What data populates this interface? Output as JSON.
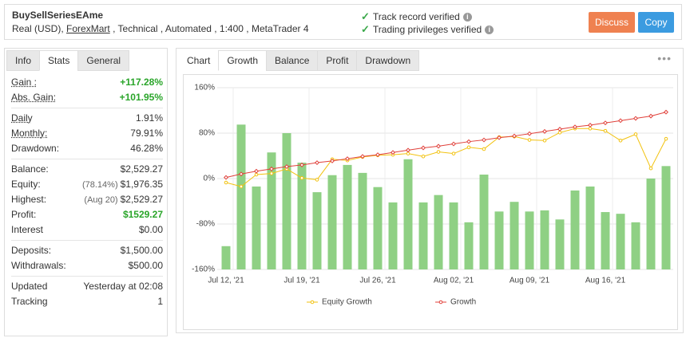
{
  "header": {
    "title": "BuySellSeriesEAme",
    "subtitle_prefix": "Real (USD),",
    "broker": "ForexMart",
    "subtitle_suffix": ", Technical , Automated , 1:400 , MetaTrader 4",
    "verifications": [
      "Track record verified",
      "Trading privileges verified"
    ],
    "buttons": [
      "Discuss",
      "Copy"
    ]
  },
  "stats_panel": {
    "tabs": [
      "Info",
      "Stats",
      "General"
    ],
    "active_tab": 1,
    "groups": [
      [
        {
          "label": "Gain :",
          "value": "+117.28%",
          "dotted": true,
          "green": true
        },
        {
          "label": "Abs. Gain:",
          "value": "+101.95%",
          "dotted": true,
          "green": true
        }
      ],
      [
        {
          "label": "Daily",
          "value": "1.91%",
          "dotted": true
        },
        {
          "label": "Monthly:",
          "value": "79.91%",
          "dotted": true
        },
        {
          "label": "Drawdown:",
          "value": "46.28%"
        }
      ],
      [
        {
          "label": "Balance:",
          "value": "$2,529.27"
        },
        {
          "label": "Equity:",
          "note": "(78.14%)",
          "value": "$1,976.35"
        },
        {
          "label": "Highest:",
          "note": "(Aug 20)",
          "value": "$2,529.27"
        },
        {
          "label": "Profit:",
          "value": "$1529.27",
          "green": true
        },
        {
          "label": "Interest",
          "value": "$0.00"
        }
      ],
      [
        {
          "label": "Deposits:",
          "value": "$1,500.00"
        },
        {
          "label": "Withdrawals:",
          "value": "$500.00"
        }
      ],
      [
        {
          "label": "Updated",
          "value": "Yesterday at 02:08"
        },
        {
          "label": "Tracking",
          "value": "1"
        }
      ]
    ]
  },
  "chart_panel": {
    "label": "Chart",
    "tabs": [
      "Growth",
      "Balance",
      "Profit",
      "Drawdown"
    ],
    "active_tab": 0
  },
  "chart_data": {
    "type": "combo",
    "categories": [
      "Jul 12, '21",
      null,
      null,
      null,
      null,
      "Jul 19, '21",
      null,
      null,
      null,
      null,
      "Jul 26, '21",
      null,
      null,
      null,
      null,
      "Aug 02, '21",
      null,
      null,
      null,
      null,
      "Aug 09, '21",
      null,
      null,
      null,
      null,
      "Aug 16, '21",
      null,
      null,
      null,
      null
    ],
    "ylim": [
      -160,
      160
    ],
    "yticks": [
      {
        "value": -160,
        "label": "-160%"
      },
      {
        "value": -80,
        "label": "-80%"
      },
      {
        "value": 0,
        "label": "0%"
      },
      {
        "value": 80,
        "label": "80%"
      },
      {
        "value": 160,
        "label": "160%"
      }
    ],
    "grid": true,
    "series": [
      {
        "type": "bar",
        "color": "#8fd084",
        "values": [
          -119,
          95,
          -14,
          46,
          80,
          28,
          -24,
          6,
          24,
          10,
          -15,
          -42,
          34,
          -42,
          -29,
          -42,
          -77,
          7,
          -58,
          -41,
          -58,
          -56,
          -72,
          -21,
          -14,
          -59,
          -62,
          -77,
          0,
          22
        ]
      },
      {
        "type": "line",
        "name": "Equity Growth",
        "color": "#f2c20f",
        "values": [
          -7,
          -14,
          7,
          9,
          17,
          1,
          -2,
          34,
          32,
          38,
          41,
          42,
          44,
          39,
          47,
          44,
          55,
          52,
          73,
          74,
          68,
          67,
          81,
          88,
          88,
          84,
          67,
          78,
          18,
          70
        ]
      },
      {
        "type": "line",
        "name": "Growth",
        "color": "#e0403a",
        "values": [
          2,
          8,
          13,
          17,
          21,
          24,
          28,
          31,
          35,
          39,
          42,
          46,
          50,
          54,
          57,
          61,
          65,
          68,
          72,
          75,
          79,
          83,
          87,
          91,
          94,
          98,
          102,
          106,
          110,
          117
        ]
      }
    ]
  }
}
